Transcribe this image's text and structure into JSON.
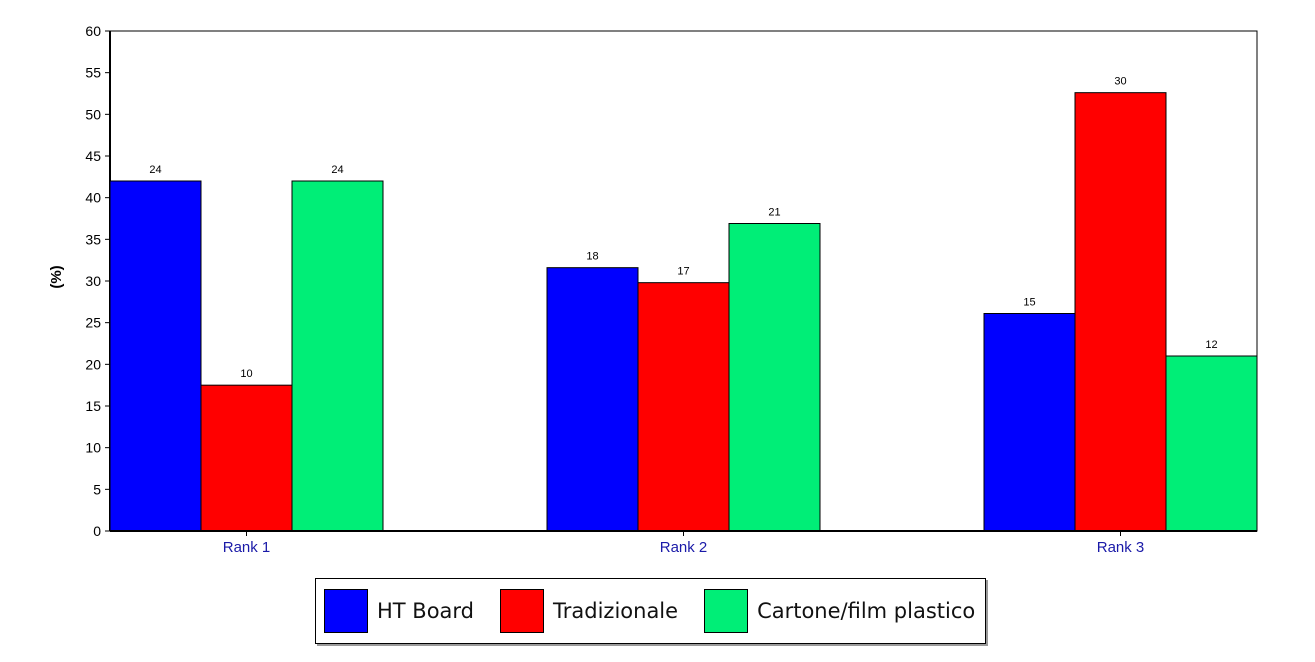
{
  "chart_data": {
    "type": "bar",
    "title": "",
    "xlabel": "",
    "ylabel": "(%)",
    "ylim": [
      0,
      60
    ],
    "ytick_step": 5,
    "categories": [
      "Rank 1",
      "Rank 2",
      "Rank 3"
    ],
    "series": [
      {
        "name": "HT Board",
        "color": "#0000ff",
        "values": [
          42.0,
          31.6,
          26.1
        ],
        "labels": [
          "24",
          "18",
          "15"
        ]
      },
      {
        "name": "Tradizionale",
        "color": "#ff0000",
        "values": [
          17.5,
          29.8,
          52.6
        ],
        "labels": [
          "10",
          "17",
          "30"
        ]
      },
      {
        "name": "Cartone/film plastico",
        "color": "#00ee77",
        "values": [
          42.0,
          36.9,
          21.0
        ],
        "labels": [
          "24",
          "21",
          "12"
        ]
      }
    ],
    "grid": false,
    "legend": "bottom"
  }
}
